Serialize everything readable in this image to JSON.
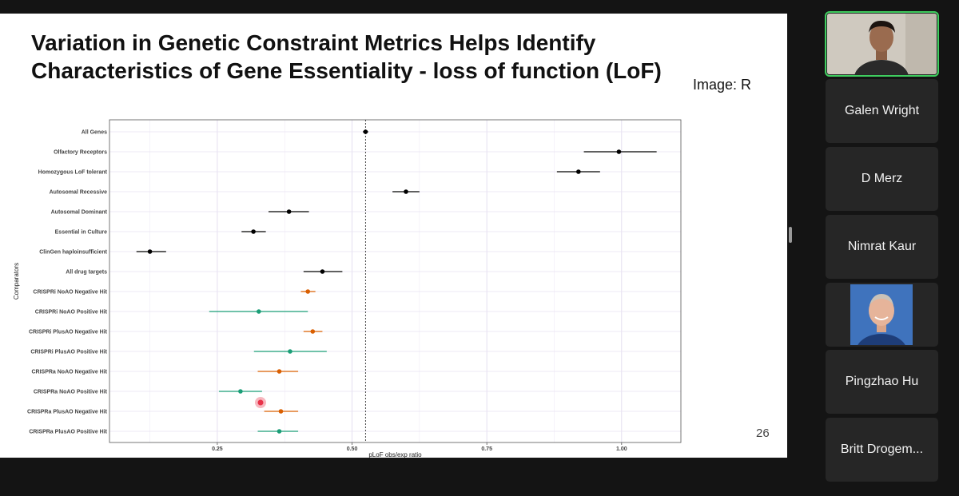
{
  "slide": {
    "title_line1": "Variation in Genetic Constraint Metrics Helps Identify",
    "title_line2": "Characteristics of Gene Essentiality - loss of function (LoF)",
    "image_credit": "Image: R",
    "page_number": "26"
  },
  "colors": {
    "black_series": "#000000",
    "orange_series": "#d95f02",
    "green_series": "#1b9e77",
    "pointer": "#e8334a"
  },
  "chart_data": {
    "type": "scatter",
    "subtype": "forest-plot",
    "xlabel": "pLoF obs/exp ratio",
    "ylabel": "Comparators",
    "xlim": [
      0.05,
      1.11
    ],
    "xticks": [
      "0.25",
      "0.50",
      "0.75",
      "1.00"
    ],
    "xtick_values": [
      0.25,
      0.5,
      0.75,
      1.0
    ],
    "reference_line": 0.525,
    "grid": true,
    "categories": [
      {
        "label": "All Genes",
        "est": 0.525,
        "lo": 0.52,
        "hi": 0.53,
        "group": "black"
      },
      {
        "label": "Olfactory Receptors",
        "est": 0.995,
        "lo": 0.93,
        "hi": 1.065,
        "group": "black"
      },
      {
        "label": "Homozygous LoF tolerant",
        "est": 0.92,
        "lo": 0.88,
        "hi": 0.96,
        "group": "black"
      },
      {
        "label": "Autosomal Recessive",
        "est": 0.6,
        "lo": 0.575,
        "hi": 0.625,
        "group": "black"
      },
      {
        "label": "Autosomal Dominant",
        "est": 0.383,
        "lo": 0.345,
        "hi": 0.42,
        "group": "black"
      },
      {
        "label": "Essential in Culture",
        "est": 0.317,
        "lo": 0.295,
        "hi": 0.34,
        "group": "black"
      },
      {
        "label": "ClinGen haploinsufficient",
        "est": 0.125,
        "lo": 0.1,
        "hi": 0.155,
        "group": "black"
      },
      {
        "label": "All drug targets",
        "est": 0.445,
        "lo": 0.41,
        "hi": 0.482,
        "group": "black"
      },
      {
        "label": "CRISPRi NoAO Negative Hit",
        "est": 0.418,
        "lo": 0.405,
        "hi": 0.432,
        "group": "orange"
      },
      {
        "label": "CRISPRi NoAO Positive Hit",
        "est": 0.327,
        "lo": 0.235,
        "hi": 0.418,
        "group": "green"
      },
      {
        "label": "CRISPRi PlusAO Negative Hit",
        "est": 0.427,
        "lo": 0.41,
        "hi": 0.445,
        "group": "orange"
      },
      {
        "label": "CRISPRi PlusAO Positive Hit",
        "est": 0.385,
        "lo": 0.318,
        "hi": 0.453,
        "group": "green"
      },
      {
        "label": "CRISPRa NoAO Negative Hit",
        "est": 0.365,
        "lo": 0.325,
        "hi": 0.4,
        "group": "orange"
      },
      {
        "label": "CRISPRa NoAO Positive Hit",
        "est": 0.293,
        "lo": 0.253,
        "hi": 0.333,
        "group": "green"
      },
      {
        "label": "CRISPRa PlusAO Negative Hit",
        "est": 0.368,
        "lo": 0.337,
        "hi": 0.4,
        "group": "orange"
      },
      {
        "label": "CRISPRa PlusAO Positive Hit",
        "est": 0.365,
        "lo": 0.325,
        "hi": 0.4,
        "group": "green"
      }
    ]
  },
  "participants": [
    {
      "name": "",
      "video": true,
      "active": true
    },
    {
      "name": "Galen Wright",
      "video": false
    },
    {
      "name": "D Merz",
      "video": false
    },
    {
      "name": "Nimrat Kaur",
      "video": false
    },
    {
      "name": "",
      "photo": true
    },
    {
      "name": "Pingzhao Hu",
      "video": false
    },
    {
      "name": "Britt Drogem...",
      "video": false
    }
  ]
}
